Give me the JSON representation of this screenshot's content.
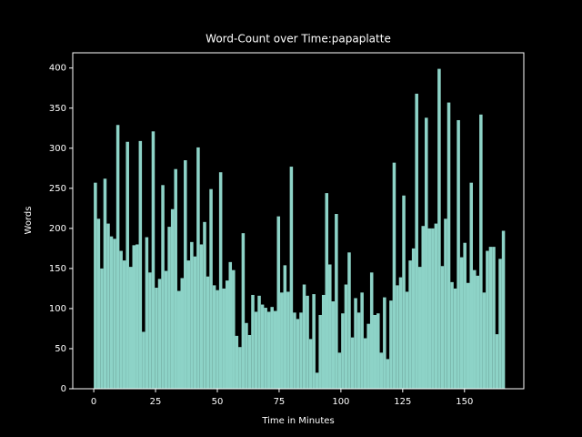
{
  "chart_data": {
    "type": "bar",
    "title": "Word-Count over Time:papaplatte",
    "x_label": "Time in Minutes",
    "y_label": "Words",
    "color": "#8dd3c7",
    "x": [
      0,
      1.3,
      2.6,
      3.9,
      5.2,
      6.5,
      7.8,
      9.1,
      10.4,
      11.7,
      13,
      14.3,
      15.6,
      16.9,
      18.2,
      19.5,
      20.8,
      22.1,
      23.4,
      24.7,
      26,
      27.3,
      28.6,
      29.9,
      31.2,
      32.5,
      33.8,
      35.1,
      36.4,
      37.7,
      39,
      40.3,
      41.6,
      42.9,
      44.2,
      45.5,
      46.8,
      48.1,
      49.4,
      50.7,
      52,
      53.3,
      54.6,
      55.9,
      57.2,
      58.5,
      59.8,
      61.1,
      62.4,
      63.7,
      65,
      66.3,
      67.6,
      68.9,
      70.2,
      71.5,
      72.8,
      74.1,
      75.4,
      76.7,
      78,
      79.3,
      80.6,
      81.9,
      83.2,
      84.5,
      85.8,
      87.1,
      88.4,
      89.7,
      91,
      92.3,
      93.6,
      94.9,
      96.2,
      97.5,
      98.8,
      100.1,
      101.4,
      102.7,
      104,
      105.3,
      106.6,
      107.9,
      109.2,
      110.5,
      111.8,
      113.1,
      114.4,
      115.7,
      117,
      118.3,
      119.6,
      120.9,
      122.2,
      123.5,
      124.8,
      126.1,
      127.4,
      128.7,
      130,
      131.3,
      132.6,
      133.9,
      135.2,
      136.5,
      137.8,
      139.1,
      140.4,
      141.7,
      143,
      144.3,
      145.6,
      146.9,
      148.2,
      149.5,
      150.8,
      152.1,
      153.4,
      154.7,
      156,
      157.3,
      158.6,
      159.9,
      161.2,
      162.5,
      163.8,
      165.1
    ],
    "values": [
      257,
      212,
      150,
      262,
      206,
      190,
      187,
      329,
      172,
      160,
      308,
      152,
      179,
      180,
      309,
      71,
      189,
      145,
      321,
      126,
      137,
      254,
      147,
      202,
      224,
      274,
      122,
      138,
      285,
      160,
      183,
      165,
      301,
      180,
      208,
      140,
      249,
      129,
      123,
      270,
      125,
      135,
      158,
      148,
      66,
      52,
      194,
      82,
      67,
      117,
      96,
      116,
      105,
      101,
      96,
      102,
      97,
      215,
      120,
      154,
      121,
      277,
      95,
      87,
      95,
      130,
      116,
      62,
      118,
      20,
      92,
      117,
      244,
      155,
      109,
      218,
      45,
      94,
      130,
      170,
      64,
      113,
      95,
      120,
      63,
      81,
      145,
      92,
      94,
      45,
      114,
      37,
      110,
      282,
      129,
      139,
      241,
      121,
      160,
      175,
      368,
      152,
      203,
      338,
      200,
      200,
      206,
      399,
      153,
      212,
      357,
      133,
      125,
      335,
      164,
      182,
      132,
      257,
      148,
      141,
      342,
      120,
      172,
      177,
      177,
      68,
      162,
      197
    ],
    "xlim": [
      -8.5,
      174
    ],
    "xticks": [
      0,
      25,
      50,
      75,
      100,
      125,
      150
    ],
    "ylim": [
      0,
      419
    ],
    "yticks": [
      0,
      50,
      100,
      150,
      200,
      250,
      300,
      350,
      400
    ]
  }
}
